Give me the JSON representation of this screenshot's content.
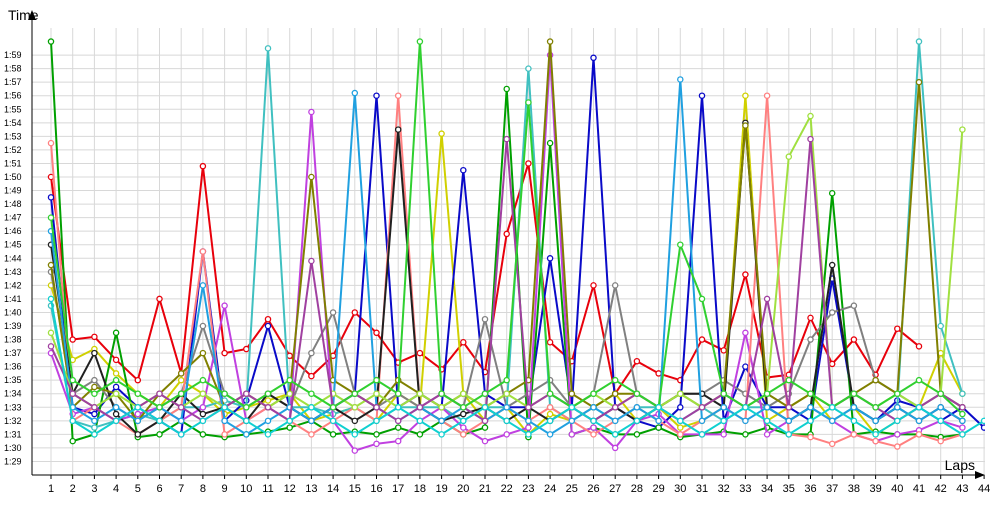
{
  "chart_data": {
    "type": "line",
    "xlabel": "Laps",
    "ylabel": "Time",
    "grid": true,
    "legend": "none",
    "x": [
      1,
      2,
      3,
      4,
      5,
      6,
      7,
      8,
      9,
      10,
      11,
      12,
      13,
      14,
      15,
      16,
      17,
      18,
      19,
      20,
      21,
      22,
      23,
      24,
      25,
      26,
      27,
      28,
      29,
      30,
      31,
      32,
      33,
      34,
      35,
      36,
      37,
      38,
      39,
      40,
      41,
      42,
      43,
      44
    ],
    "ylim": [
      "1:28",
      "2:01"
    ],
    "y_ticks": [
      "1:29",
      "1:30",
      "1:31",
      "1:32",
      "1:33",
      "1:34",
      "1:35",
      "1:36",
      "1:37",
      "1:38",
      "1:39",
      "1:40",
      "1:41",
      "1:42",
      "1:43",
      "1:44",
      "1:45",
      "1:46",
      "1:47",
      "1:48",
      "1:49",
      "1:50",
      "1:51",
      "1:52",
      "1:53",
      "1:54",
      "1:55",
      "1:56",
      "1:57",
      "1:58",
      "1:59"
    ],
    "series": [
      {
        "color": "#e8000b",
        "values": [
          "1:50",
          "1:38",
          "1:38.2",
          "1:36.5",
          "1:35",
          "1:41",
          "1:35.5",
          "1:50.8",
          "1:37",
          "1:37.3",
          "1:39.5",
          "1:36.8",
          "1:35.3",
          "1:36.8",
          "1:40",
          "1:38.5",
          "1:36.3",
          "1:37",
          "1:35.8",
          "1:37.8",
          "1:35.6",
          "1:45.8",
          "1:51",
          "1:37.8",
          "1:36.4",
          "1:42",
          "1:34",
          "1:36.4",
          "1:35.5",
          "1:35",
          "1:38",
          "1:37.2",
          "1:42.8",
          "1:35.2",
          "1:35.4",
          "1:39.6",
          "1:36.2",
          "1:38",
          "1:35.4",
          "1:38.8",
          "1:37.5",
          null,
          null,
          null
        ]
      },
      {
        "color": "#d0d000",
        "values": [
          "1:42",
          "1:36.5",
          "1:37.3",
          "1:35.5",
          "1:34",
          "1:33",
          "1:35",
          "1:34",
          "1:32.5",
          "1:33",
          "1:33.5",
          "1:34",
          "1:32",
          "1:32.5",
          "1:33",
          "1:32",
          "1:34",
          "1:33",
          "1:53.2",
          "1:34",
          "1:32",
          "1:33",
          "1:31",
          "1:32.5",
          "1:32",
          "1:33",
          "1:34",
          "1:32",
          "1:33",
          "1:31.5",
          "1:32",
          "1:33",
          "1:56",
          "1:32",
          "1:33",
          "1:34",
          "1:32",
          "1:33",
          "1:31",
          "1:32",
          "1:33",
          "1:37",
          "1:34",
          null
        ]
      },
      {
        "color": "#0a0ac8",
        "values": [
          "1:48.5",
          "1:33",
          "1:32.5",
          "1:34.5",
          "1:33",
          "1:32",
          "1:31",
          "1:44.5",
          "1:32",
          "1:33.5",
          "1:39",
          "1:33",
          "1:32",
          "1:33",
          "1:34",
          "1:56",
          "1:33",
          "1:34",
          "1:33",
          "1:50.5",
          "1:34",
          "1:33",
          "1:33",
          "1:44",
          "1:33",
          "1:58.8",
          "1:33",
          "1:32",
          "1:31.5",
          "1:33",
          "1:56",
          "1:32",
          "1:36",
          "1:33",
          "1:33",
          "1:32",
          "1:42.5",
          "1:33",
          "1:32",
          "1:33.5",
          "1:33",
          "1:32",
          "1:33",
          "1:31.5"
        ]
      },
      {
        "color": "#00a000",
        "values": [
          "2:00",
          "1:30.5",
          "1:31",
          "1:38.5",
          "1:30.8",
          "1:31",
          "1:32",
          "1:31",
          "1:30.8",
          "1:31",
          "1:31.2",
          "1:31.5",
          "1:32",
          "1:31",
          "1:31.2",
          "1:31",
          "1:31.5",
          "1:31",
          "1:32",
          "1:31",
          "1:31.5",
          "1:56.5",
          "1:30.8",
          "1:52.5",
          "1:31",
          "1:31.5",
          "1:31",
          "1:31",
          "1:31.5",
          "1:30.8",
          "1:31",
          "1:31.2",
          "1:31",
          "1:31.5",
          "1:31",
          "1:31",
          "1:48.8",
          "1:31",
          "1:31.2",
          "1:31",
          "1:31",
          "1:30.8",
          "1:31",
          null
        ]
      },
      {
        "color": "#808080",
        "values": [
          "1:43",
          "1:34",
          "1:35",
          "1:33",
          "1:32",
          "1:33",
          "1:34",
          "1:39",
          "1:34",
          "1:33",
          "1:34",
          "1:33",
          "1:37",
          "1:40",
          "1:34",
          "1:33",
          "1:34",
          "1:33",
          "1:34",
          "1:33",
          "1:39.5",
          "1:33",
          "1:34",
          "1:35",
          "1:33",
          "1:34",
          "1:42",
          "1:34",
          "1:33",
          "1:34",
          "1:34",
          "1:35",
          "1:34",
          "1:33",
          "1:34",
          "1:38",
          "1:40",
          "1:40.5",
          "1:35",
          "1:34",
          "1:33",
          "1:34",
          "1:33",
          null
        ]
      },
      {
        "color": "#40c0c0",
        "values": [
          "1:40.5",
          "1:32",
          "1:31.5",
          "1:32",
          "1:32.5",
          "1:32",
          "1:33",
          "1:33",
          "1:33.5",
          "1:33",
          "1:59.5",
          "1:33",
          "1:33",
          "1:32.5",
          "1:33",
          "1:32",
          "1:33",
          "1:33",
          "1:33",
          "1:32",
          "1:33",
          "1:33",
          "1:58",
          "1:33",
          "1:32",
          "1:33",
          "1:32",
          "1:33",
          "1:33",
          "1:32",
          "1:33",
          "1:32",
          "1:33",
          "1:33",
          "1:32",
          "1:33",
          "1:32",
          "1:33",
          "1:32",
          "1:33",
          "2:00",
          "1:39",
          "1:34",
          null
        ]
      },
      {
        "color": "#c040e0",
        "values": [
          "1:37",
          "1:32.5",
          "1:33",
          "1:32",
          "1:32.5",
          "1:33",
          "1:32",
          "1:33",
          "1:40.5",
          "1:32",
          "1:33",
          "1:32",
          "1:54.8",
          "1:32",
          "1:29.8",
          "1:30.3",
          "1:30.5",
          "1:32",
          "1:33",
          "1:31.5",
          "1:30.5",
          "1:31",
          "1:31.5",
          "1:59",
          "1:31",
          "1:31.5",
          "1:30",
          "1:32",
          "1:32.5",
          "1:31",
          "1:31",
          "1:31",
          "1:38.5",
          "1:31",
          "1:32",
          "1:33",
          "1:32",
          "1:31",
          "1:30.5",
          "1:31",
          "1:31.3",
          "1:32",
          "1:31.5",
          null
        ]
      },
      {
        "color": "#ff8080",
        "values": [
          "1:52.5",
          "1:32",
          "1:33",
          "1:32",
          "1:31",
          "1:32",
          "1:33",
          "1:44.5",
          "1:31",
          "1:32",
          "1:33",
          "1:32",
          "1:31",
          "1:32",
          "1:33",
          "1:32",
          "1:56",
          "1:33",
          "1:32",
          "1:31",
          "1:32",
          "1:33",
          "1:32",
          "1:33",
          "1:32",
          "1:31",
          "1:32",
          "1:33",
          "1:32",
          "1:31",
          "1:32",
          "1:33",
          "1:32",
          "1:56",
          "1:31",
          "1:30.8",
          "1:30.3",
          "1:31",
          "1:30.5",
          "1:30.1",
          "1:31",
          "1:30.5",
          "1:31",
          null
        ]
      },
      {
        "color": "#202020",
        "values": [
          "1:45",
          "1:34",
          "1:37",
          "1:32.5",
          "1:31",
          "1:32",
          "1:34",
          "1:32.5",
          "1:33",
          "1:32",
          "1:34",
          "1:33",
          "1:32",
          "1:33",
          "1:32",
          "1:33",
          "1:53.5",
          "1:33",
          "1:32",
          "1:32.5",
          "1:33",
          "1:32",
          "1:33",
          "1:32",
          "1:33",
          "1:32",
          "1:33",
          "1:32",
          "1:33",
          "1:34",
          "1:34",
          "1:33",
          "1:54",
          "1:33",
          "1:32",
          "1:33",
          "1:43.5",
          "1:33",
          "1:32",
          "1:33",
          "1:32",
          "1:33",
          "1:32",
          null
        ]
      },
      {
        "color": "#808000",
        "values": [
          "1:43.5",
          "1:33",
          "1:34.5",
          "1:34",
          "1:32",
          "1:34",
          "1:35.5",
          "1:37",
          "1:33",
          "1:34",
          "1:33",
          "1:34",
          "1:50",
          "1:35",
          "1:34",
          "1:33",
          "1:35",
          "1:34",
          "1:33",
          "1:34",
          "1:33",
          "1:34",
          "1:35",
          "2:00",
          "1:34",
          "1:33",
          "1:34",
          "1:34",
          "1:33",
          "1:34",
          "1:33",
          "1:34",
          "1:53.8",
          "1:34",
          "1:33",
          "1:34",
          "1:33",
          "1:34",
          "1:35",
          "1:34",
          "1:57",
          "1:34",
          "1:33",
          null
        ]
      },
      {
        "color": "#20a0e0",
        "values": [
          "1:46",
          "1:33",
          "1:32",
          "1:33",
          "1:32",
          "1:33",
          "1:32",
          "1:42",
          "1:32",
          "1:31",
          "1:32",
          "1:33",
          "1:32",
          "1:33",
          "1:56.2",
          "1:33",
          "1:32",
          "1:33",
          "1:32",
          "1:33",
          "1:32",
          "1:33",
          "1:32",
          "1:31",
          "1:32",
          "1:33",
          "1:32",
          "1:33",
          "1:32",
          "1:57.2",
          "1:32",
          "1:33",
          "1:32",
          "1:33",
          "1:32",
          "1:33",
          "1:32",
          "1:33",
          "1:32",
          "1:33",
          "1:32",
          "1:33",
          "1:32",
          null
        ]
      },
      {
        "color": "#a0e040",
        "values": [
          "1:38.5",
          "1:34",
          "1:33",
          "1:34",
          "1:33",
          "1:34",
          "1:33",
          "1:34",
          "1:33",
          "1:34",
          "1:33",
          "1:34",
          "1:33",
          "1:34",
          "1:33",
          "1:34",
          "1:33",
          "1:34",
          "1:33",
          "1:34",
          "1:33",
          "1:34",
          "1:33",
          "1:34",
          "1:33",
          "1:34",
          "1:33",
          "1:34",
          "1:33",
          "1:34",
          "1:33",
          "1:34",
          "1:33",
          "1:34",
          "1:51.5",
          "1:54.5",
          "1:33",
          "1:34",
          "1:33",
          "1:34",
          "1:33",
          "1:34",
          "1:53.5",
          null
        ]
      },
      {
        "color": "#a040a0",
        "values": [
          "1:37.5",
          "1:34",
          "1:33",
          "1:32",
          "1:33",
          "1:34",
          "1:33",
          "1:32",
          "1:33",
          "1:34",
          "1:33",
          "1:32",
          "1:43.8",
          "1:33",
          "1:34",
          "1:33",
          "1:32",
          "1:33",
          "1:34",
          "1:33",
          "1:32",
          "1:52.8",
          "1:33",
          "1:34",
          "1:33",
          "1:32",
          "1:33",
          "1:34",
          "1:33",
          "1:32",
          "1:33",
          "1:34",
          "1:33",
          "1:41",
          "1:33",
          "1:52.8",
          "1:33",
          "1:34",
          "1:33",
          "1:32",
          "1:33",
          "1:34",
          "1:33",
          null
        ]
      },
      {
        "color": "#30d030",
        "values": [
          "1:47",
          "1:35",
          "1:34",
          "1:35",
          "1:34",
          "1:33",
          "1:34",
          "1:35",
          "1:34",
          "1:33",
          "1:34",
          "1:35",
          "1:34",
          "1:33",
          "1:34",
          "1:35",
          "1:34",
          "2:00",
          "1:34",
          "1:33",
          "1:34",
          "1:35",
          "1:55.5",
          "1:34",
          "1:33",
          "1:34",
          "1:35",
          "1:34",
          "1:33",
          "1:45",
          "1:41",
          "1:34",
          "1:33",
          "1:34",
          "1:35",
          "1:34",
          "1:33",
          "1:34",
          "1:33",
          "1:34",
          "1:35",
          "1:34",
          "1:32.5",
          null
        ]
      },
      {
        "color": "#10d0d0",
        "values": [
          "1:41",
          "1:32",
          "1:31",
          "1:32",
          "1:33",
          "1:32",
          "1:31",
          "1:32",
          "1:33",
          "1:32",
          "1:31",
          "1:32",
          "1:33",
          "1:32",
          "1:31",
          "1:32",
          "1:33",
          "1:32",
          "1:31",
          "1:32",
          "1:33",
          "1:32",
          "1:31",
          "1:32",
          "1:33",
          "1:32",
          "1:31",
          "1:32",
          "1:33",
          "1:32",
          "1:31",
          "1:32",
          "1:33",
          "1:32",
          "1:31",
          "1:32",
          "1:33",
          "1:32",
          "1:31",
          "1:32",
          "1:33",
          "1:32",
          "1:31",
          "1:32"
        ]
      }
    ]
  }
}
